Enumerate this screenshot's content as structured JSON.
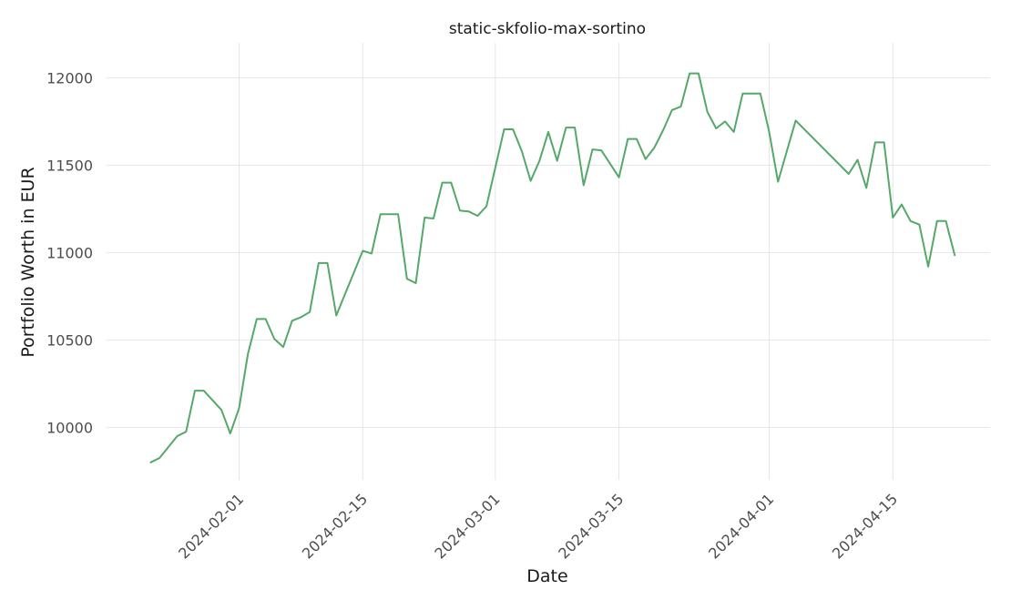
{
  "chart_data": {
    "type": "line",
    "title": "static-skfolio-max-sortino",
    "xlabel": "Date",
    "ylabel": "Portfolio Worth in EUR",
    "ylim": [
      9700,
      12200
    ],
    "xlim": [
      "2024-01-17",
      "2024-04-26"
    ],
    "grid": true,
    "y_ticks": [
      "10000",
      "10500",
      "11000",
      "11500",
      "12000"
    ],
    "x_ticks": [
      "2024-02-01",
      "2024-02-15",
      "2024-03-01",
      "2024-03-15",
      "2024-04-01",
      "2024-04-15"
    ],
    "series": [
      {
        "color": "#55a868",
        "points": [
          [
            "2024-01-22",
            9800
          ],
          [
            "2024-01-23",
            9825
          ],
          [
            "2024-01-25",
            9950
          ],
          [
            "2024-01-26",
            9975
          ],
          [
            "2024-01-27",
            10210
          ],
          [
            "2024-01-28",
            10210
          ],
          [
            "2024-01-30",
            10100
          ],
          [
            "2024-01-31",
            9965
          ],
          [
            "2024-02-01",
            10110
          ],
          [
            "2024-02-02",
            10420
          ],
          [
            "2024-02-03",
            10620
          ],
          [
            "2024-02-04",
            10620
          ],
          [
            "2024-02-05",
            10505
          ],
          [
            "2024-02-06",
            10460
          ],
          [
            "2024-02-07",
            10610
          ],
          [
            "2024-02-08",
            10630
          ],
          [
            "2024-02-09",
            10660
          ],
          [
            "2024-02-10",
            10940
          ],
          [
            "2024-02-11",
            10940
          ],
          [
            "2024-02-12",
            10640
          ],
          [
            "2024-02-15",
            11010
          ],
          [
            "2024-02-16",
            10995
          ],
          [
            "2024-02-17",
            11220
          ],
          [
            "2024-02-19",
            11220
          ],
          [
            "2024-02-20",
            10850
          ],
          [
            "2024-02-21",
            10825
          ],
          [
            "2024-02-22",
            11200
          ],
          [
            "2024-02-23",
            11195
          ],
          [
            "2024-02-24",
            11400
          ],
          [
            "2024-02-25",
            11400
          ],
          [
            "2024-02-26",
            11240
          ],
          [
            "2024-02-27",
            11235
          ],
          [
            "2024-02-28",
            11210
          ],
          [
            "2024-02-29",
            11265
          ],
          [
            "2024-03-02",
            11705
          ],
          [
            "2024-03-03",
            11705
          ],
          [
            "2024-03-04",
            11580
          ],
          [
            "2024-03-05",
            11410
          ],
          [
            "2024-03-06",
            11525
          ],
          [
            "2024-03-07",
            11690
          ],
          [
            "2024-03-08",
            11525
          ],
          [
            "2024-03-09",
            11715
          ],
          [
            "2024-03-10",
            11715
          ],
          [
            "2024-03-11",
            11385
          ],
          [
            "2024-03-12",
            11590
          ],
          [
            "2024-03-13",
            11585
          ],
          [
            "2024-03-15",
            11430
          ],
          [
            "2024-03-16",
            11650
          ],
          [
            "2024-03-17",
            11650
          ],
          [
            "2024-03-18",
            11535
          ],
          [
            "2024-03-19",
            11600
          ],
          [
            "2024-03-20",
            11700
          ],
          [
            "2024-03-21",
            11815
          ],
          [
            "2024-03-22",
            11835
          ],
          [
            "2024-03-23",
            12025
          ],
          [
            "2024-03-24",
            12025
          ],
          [
            "2024-03-25",
            11805
          ],
          [
            "2024-03-26",
            11710
          ],
          [
            "2024-03-27",
            11750
          ],
          [
            "2024-03-28",
            11690
          ],
          [
            "2024-03-29",
            11910
          ],
          [
            "2024-03-31",
            11910
          ],
          [
            "2024-04-01",
            11690
          ],
          [
            "2024-04-02",
            11405
          ],
          [
            "2024-04-04",
            11755
          ],
          [
            "2024-04-10",
            11450
          ],
          [
            "2024-04-11",
            11530
          ],
          [
            "2024-04-12",
            11370
          ],
          [
            "2024-04-13",
            11630
          ],
          [
            "2024-04-14",
            11630
          ],
          [
            "2024-04-15",
            11200
          ],
          [
            "2024-04-16",
            11275
          ],
          [
            "2024-04-17",
            11180
          ],
          [
            "2024-04-18",
            11160
          ],
          [
            "2024-04-19",
            10920
          ],
          [
            "2024-04-20",
            11180
          ],
          [
            "2024-04-21",
            11180
          ],
          [
            "2024-04-22",
            10985
          ]
        ]
      }
    ]
  }
}
